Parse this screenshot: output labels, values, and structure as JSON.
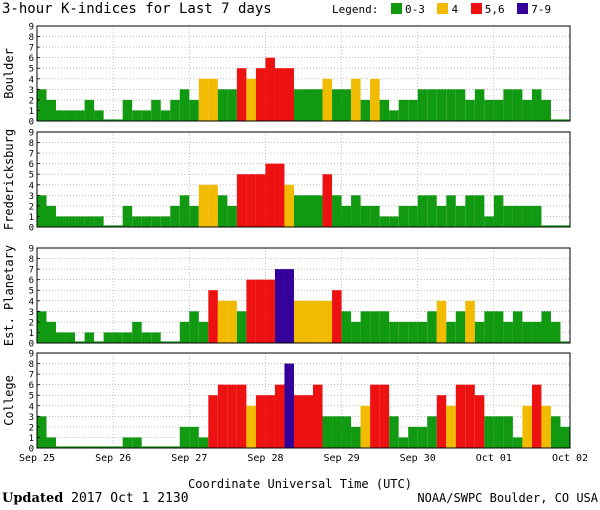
{
  "title": "3-hour K-indices for Last 7 days",
  "legend": {
    "label": "Legend:",
    "items": [
      {
        "label": "0-3",
        "color": "#119911"
      },
      {
        "label": "4",
        "color": "#f0bb00"
      },
      {
        "label": "5,6",
        "color": "#ee1111"
      },
      {
        "label": "7-9",
        "color": "#330099"
      }
    ]
  },
  "footer": {
    "updated_label": "Updated",
    "updated_value": "2017 Oct  1 2130",
    "credit": "NOAA/SWPC Boulder, CO USA"
  },
  "chart_data": {
    "type": "bar",
    "xlabel": "Coordinate Universal Time (UTC)",
    "x_ticks": [
      "Sep 25",
      "Sep 26",
      "Sep 27",
      "Sep 28",
      "Sep 29",
      "Sep 30",
      "Oct 01",
      "Oct 02"
    ],
    "ylim": [
      0,
      9
    ],
    "y_ticks": [
      "0",
      "1",
      "2",
      "3",
      "4",
      "5",
      "6",
      "7",
      "8",
      "9"
    ],
    "grid": true,
    "bins_per_day": 8,
    "panels": [
      {
        "name": "Boulder",
        "values": [
          3,
          2,
          1,
          1,
          1,
          2,
          1,
          0,
          0,
          2,
          1,
          1,
          2,
          1,
          2,
          3,
          2,
          4,
          4,
          3,
          3,
          5,
          4,
          5,
          6,
          5,
          5,
          3,
          3,
          3,
          4,
          3,
          3,
          4,
          2,
          4,
          2,
          1,
          2,
          2,
          3,
          3,
          3,
          3,
          3,
          2,
          3,
          2,
          2,
          3,
          3,
          2,
          3,
          2,
          0,
          0
        ]
      },
      {
        "name": "Fredericksburg",
        "values": [
          3,
          2,
          1,
          1,
          1,
          1,
          1,
          0,
          0,
          2,
          1,
          1,
          1,
          1,
          2,
          3,
          2,
          4,
          4,
          3,
          2,
          5,
          5,
          5,
          6,
          6,
          4,
          3,
          3,
          3,
          5,
          3,
          2,
          3,
          2,
          2,
          1,
          1,
          2,
          2,
          3,
          3,
          2,
          3,
          2,
          3,
          3,
          1,
          3,
          2,
          2,
          2,
          2,
          0,
          0,
          0
        ]
      },
      {
        "name": "Est. Planetary",
        "values": [
          3,
          2,
          1,
          1,
          0,
          1,
          0,
          1,
          1,
          1,
          2,
          1,
          1,
          0,
          0,
          2,
          3,
          2,
          5,
          4,
          4,
          3,
          6,
          6,
          6,
          7,
          7,
          4,
          4,
          4,
          4,
          5,
          3,
          2,
          3,
          3,
          3,
          2,
          2,
          2,
          2,
          3,
          4,
          2,
          3,
          4,
          2,
          3,
          3,
          2,
          3,
          2,
          2,
          3,
          2,
          0
        ]
      },
      {
        "name": "College",
        "values": [
          3,
          1,
          0,
          0,
          0,
          0,
          0,
          0,
          0,
          1,
          1,
          0,
          0,
          0,
          0,
          2,
          2,
          1,
          5,
          6,
          6,
          6,
          4,
          5,
          5,
          6,
          8,
          5,
          5,
          6,
          3,
          3,
          3,
          2,
          4,
          6,
          6,
          3,
          1,
          2,
          2,
          3,
          5,
          4,
          6,
          6,
          5,
          3,
          3,
          3,
          1,
          4,
          6,
          4,
          3,
          2
        ]
      }
    ]
  }
}
